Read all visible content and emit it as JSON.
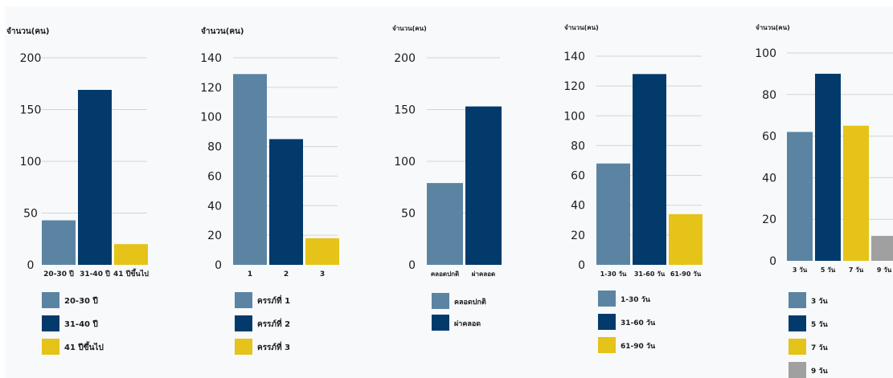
{
  "colors": {
    "steel": "#5b84a3",
    "navy": "#033a6c",
    "yellow": "#e5c318",
    "gray": "#a0a0a0",
    "grid": "#d4d4d4"
  },
  "chart_data": [
    {
      "type": "bar",
      "ylabel": "จำนวน(คน)",
      "ylim": [
        0,
        200
      ],
      "yticks": [
        0,
        50,
        100,
        150,
        200
      ],
      "categories": [
        "20-30 ปี",
        "31-40 ปี",
        "41 ปีขึ้นไป"
      ],
      "values": [
        43,
        169,
        20
      ],
      "legend": [
        "20-30 ปี",
        "31-40 ปี",
        "41 ปีขึ้นไป"
      ],
      "bar_colors": [
        "steel",
        "navy",
        "yellow"
      ]
    },
    {
      "type": "bar",
      "ylabel": "จำนวน(คน)",
      "ylim": [
        0,
        140
      ],
      "yticks": [
        0,
        20,
        40,
        60,
        80,
        100,
        120,
        140
      ],
      "categories": [
        "1",
        "2",
        "3"
      ],
      "values": [
        129,
        85,
        18
      ],
      "legend": [
        "ครรภ์ที่ 1",
        "ครรภ์ที่ 2",
        "ครรภ์ที่ 3"
      ],
      "bar_colors": [
        "steel",
        "navy",
        "yellow"
      ]
    },
    {
      "type": "bar",
      "ylabel": "จำนวน(คน)",
      "ylim": [
        0,
        200
      ],
      "yticks": [
        0,
        50,
        100,
        150,
        200
      ],
      "categories": [
        "คลอดปกติ",
        "ผ่าคลอด"
      ],
      "values": [
        79,
        153
      ],
      "legend": [
        "คลอดปกติ",
        "ผ่าคลอด"
      ],
      "bar_colors": [
        "steel",
        "navy"
      ]
    },
    {
      "type": "bar",
      "ylabel": "จำนวน(คน)",
      "ylim": [
        0,
        140
      ],
      "yticks": [
        0,
        20,
        40,
        60,
        80,
        100,
        120,
        140
      ],
      "categories": [
        "1-30 วัน",
        "31-60 วัน",
        "61-90 วัน"
      ],
      "values": [
        68,
        128,
        34
      ],
      "legend": [
        "1-30 วัน",
        "31-60 วัน",
        "61-90 วัน"
      ],
      "bar_colors": [
        "steel",
        "navy",
        "yellow"
      ]
    },
    {
      "type": "bar",
      "ylabel": "จำนวน(คน)",
      "ylim": [
        0,
        100
      ],
      "yticks": [
        0,
        20,
        40,
        60,
        80,
        100
      ],
      "categories": [
        "3 วัน",
        "5 วัน",
        "7 วัน",
        "9 วัน"
      ],
      "values": [
        62,
        90,
        65,
        12
      ],
      "legend": [
        "3 วัน",
        "5 วัน",
        "7 วัน",
        "9 วัน"
      ],
      "bar_colors": [
        "steel",
        "navy",
        "yellow",
        "gray"
      ]
    }
  ]
}
